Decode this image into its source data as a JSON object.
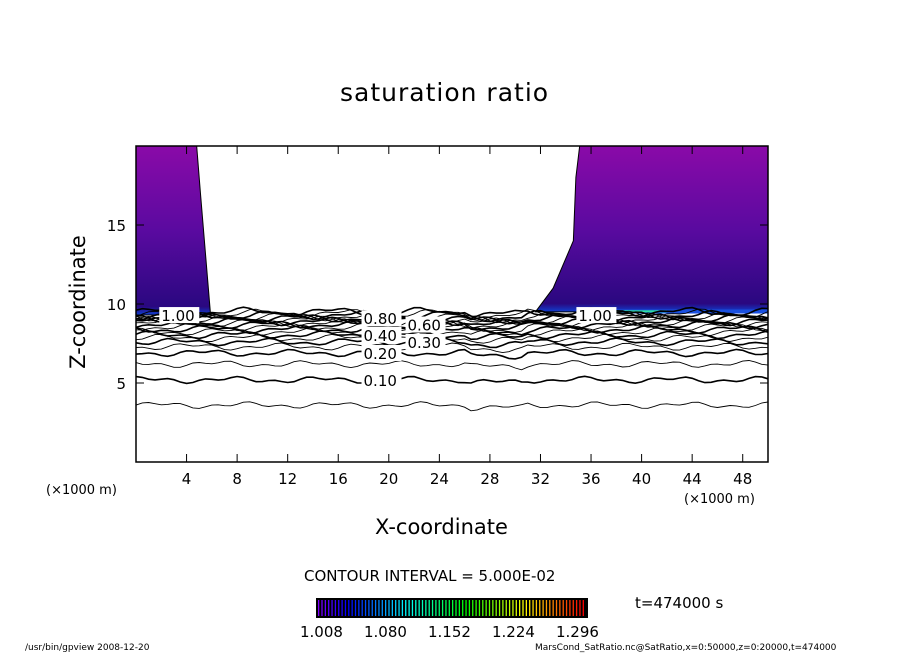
{
  "chart_data": {
    "type": "contour",
    "title": "saturation ratio",
    "xlabel": "X-coordinate",
    "ylabel": "Z-coordinate",
    "x_unit": "(×1000 m)",
    "y_unit": "(×1000 m)",
    "xlim": [
      0,
      50
    ],
    "ylim": [
      0,
      20
    ],
    "xticks": [
      "4",
      "8",
      "12",
      "16",
      "20",
      "24",
      "28",
      "32",
      "36",
      "40",
      "44",
      "48"
    ],
    "xtick_values": [
      4,
      8,
      12,
      16,
      20,
      24,
      28,
      32,
      36,
      40,
      44,
      48
    ],
    "yticks": [
      "5",
      "10",
      "15"
    ],
    "ytick_values": [
      5,
      10,
      15
    ],
    "contour_interval_label": "CONTOUR INTERVAL = 5.000E-02",
    "contour_levels": [
      0.05,
      0.1,
      0.15,
      0.2,
      0.25,
      0.3,
      0.35,
      0.4,
      0.45,
      0.5,
      0.55,
      0.6,
      0.65,
      0.7,
      0.75,
      0.8,
      0.85,
      0.9,
      0.95,
      1.0
    ],
    "contour_mean_z": [
      3.6,
      5.2,
      6.2,
      6.9,
      7.3,
      7.6,
      7.85,
      8.05,
      8.25,
      8.4,
      8.55,
      8.7,
      8.8,
      8.9,
      9.0,
      9.1,
      9.2,
      9.3,
      9.4,
      9.5
    ],
    "contour_labels": [
      {
        "text": "0.10",
        "x": 18,
        "z": 5.2
      },
      {
        "text": "0.20",
        "x": 18,
        "z": 6.9
      },
      {
        "text": "0.30",
        "x": 18,
        "z": 7.6
      },
      {
        "text": "0.40",
        "x": 18,
        "z": 8.05
      },
      {
        "text": "0.60",
        "x": 18,
        "z": 8.7
      },
      {
        "text": "0.80",
        "x": 18,
        "z": 9.1
      },
      {
        "text": "1.00",
        "x": 2,
        "z": 9.3
      },
      {
        "text": "1.00",
        "x": 35,
        "z": 9.3
      }
    ],
    "shaded_regions": [
      {
        "name": "left supersaturated",
        "boundary_x_bottom": 5.9,
        "boundary_x_top": 4.8,
        "z_bottom": 9.3,
        "z_top": 20
      },
      {
        "name": "right supersaturated",
        "boundary_x_bottom": 31.6,
        "boundary_x_top": 35.1,
        "z_bottom": 9.5,
        "z_top": 20
      }
    ],
    "colorbar": {
      "tick_labels": [
        "1.008",
        "1.080",
        "1.152",
        "1.224",
        "1.296"
      ],
      "min": 1.008,
      "max": 1.33
    },
    "colors": {
      "purple": "#8a0aa8",
      "blue": "#3a0a9c",
      "deep": "#2a0880"
    }
  },
  "time_label": "t=474000 s",
  "footer_left": "/usr/bin/gpview   2008-12-20",
  "footer_right": "MarsCond_SatRatio.nc@SatRatio,x=0:50000,z=0:20000,t=474000"
}
